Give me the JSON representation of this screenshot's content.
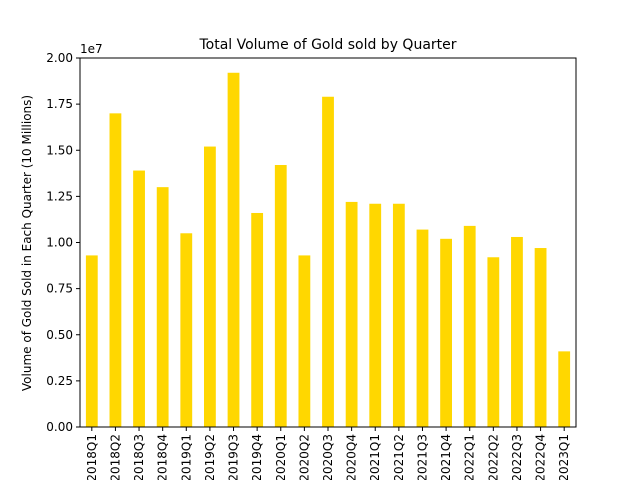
{
  "chart_data": {
    "type": "bar",
    "title": "Total Volume of Gold sold by Quarter",
    "xlabel": "",
    "ylabel": "Volume of Gold Sold in Each Quarter (10 Millions)",
    "y_offset_label": "1e7",
    "ylim": [
      0,
      2.0
    ],
    "y_ticks": [
      "0.00",
      "0.25",
      "0.50",
      "0.75",
      "1.00",
      "1.25",
      "1.50",
      "1.75",
      "2.00"
    ],
    "categories": [
      "2018Q1",
      "2018Q2",
      "2018Q3",
      "2018Q4",
      "2019Q1",
      "2019Q2",
      "2019Q3",
      "2019Q4",
      "2020Q1",
      "2020Q2",
      "2020Q3",
      "2020Q4",
      "2021Q1",
      "2021Q2",
      "2021Q3",
      "2021Q4",
      "2022Q1",
      "2022Q2",
      "2022Q3",
      "2022Q4",
      "2023Q1"
    ],
    "values": [
      0.93,
      1.7,
      1.39,
      1.3,
      1.05,
      1.52,
      1.92,
      1.16,
      1.42,
      0.93,
      1.79,
      1.22,
      1.21,
      1.21,
      1.07,
      1.02,
      1.09,
      0.92,
      1.03,
      0.97,
      0.41
    ],
    "bar_color": "#ffd700",
    "grid": false,
    "legend": "none"
  }
}
